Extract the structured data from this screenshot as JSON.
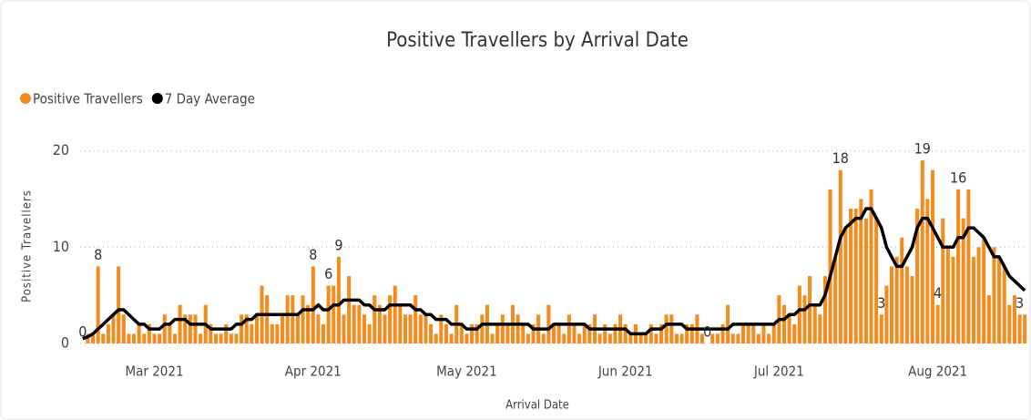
{
  "chart_data": {
    "type": "bar_line",
    "title": "Positive Travellers by Arrival Date",
    "x_label": "Arrival Date",
    "y_label": "Positive Travellers",
    "ylim": [
      0,
      21
    ],
    "yticks": [
      0,
      10,
      20
    ],
    "grid": true,
    "legend": "top-left",
    "categories": [
      null,
      null,
      null,
      null,
      null,
      null,
      null,
      null,
      null,
      null,
      null,
      null,
      null,
      null,
      "Mar 2021",
      null,
      null,
      null,
      null,
      null,
      null,
      null,
      null,
      null,
      null,
      null,
      null,
      null,
      null,
      null,
      null,
      null,
      null,
      null,
      null,
      null,
      null,
      null,
      null,
      null,
      null,
      null,
      null,
      null,
      null,
      "Apr 2021",
      null,
      null,
      null,
      null,
      null,
      null,
      null,
      null,
      null,
      null,
      null,
      null,
      null,
      null,
      null,
      null,
      null,
      null,
      null,
      null,
      null,
      null,
      null,
      null,
      null,
      null,
      null,
      null,
      null,
      "May 2021",
      null,
      null,
      null,
      null,
      null,
      null,
      null,
      null,
      null,
      null,
      null,
      null,
      null,
      null,
      null,
      null,
      null,
      null,
      null,
      null,
      null,
      null,
      null,
      null,
      null,
      null,
      null,
      null,
      null,
      null,
      "Jun 2021",
      null,
      null,
      null,
      null,
      null,
      null,
      null,
      null,
      null,
      null,
      null,
      null,
      null,
      null,
      null,
      null,
      null,
      null,
      null,
      null,
      null,
      null,
      null,
      null,
      null,
      null,
      null,
      null,
      null,
      "Jul 2021",
      null,
      null,
      null,
      null,
      null,
      null,
      null,
      null,
      null,
      null,
      null,
      null,
      null,
      null,
      null,
      null,
      null,
      null,
      null,
      null,
      null,
      null,
      null,
      null,
      null,
      null,
      null,
      null,
      null,
      null,
      "Aug 2021",
      null,
      null,
      null,
      null,
      null,
      null,
      null,
      null,
      null,
      null,
      null,
      null,
      null,
      null,
      null,
      null,
      null
    ],
    "series": [
      {
        "name": "Positive Travellers",
        "color": "#f28c1e",
        "values": [
          0,
          1,
          1,
          8,
          1,
          2,
          3,
          8,
          3,
          1,
          1,
          2,
          1,
          2,
          1,
          1,
          3,
          2,
          1,
          4,
          3,
          3,
          3,
          1,
          4,
          2,
          1,
          1,
          2,
          1,
          1,
          3,
          3,
          2,
          3,
          6,
          5,
          2,
          2,
          3,
          5,
          5,
          3,
          5,
          4,
          8,
          3,
          2,
          6,
          6,
          9,
          3,
          7,
          4,
          4,
          3,
          2,
          5,
          4,
          3,
          5,
          6,
          4,
          3,
          3,
          5,
          3,
          3,
          2,
          1,
          3,
          2,
          1,
          4,
          2,
          1,
          2,
          2,
          3,
          4,
          1,
          2,
          3,
          2,
          4,
          3,
          2,
          1,
          2,
          3,
          1,
          4,
          2,
          2,
          1,
          3,
          2,
          1,
          2,
          2,
          3,
          1,
          2,
          1,
          2,
          3,
          2,
          1,
          2,
          1,
          1,
          2,
          1,
          2,
          3,
          3,
          1,
          1,
          2,
          2,
          3,
          1,
          0,
          1,
          1,
          2,
          4,
          1,
          1,
          2,
          2,
          2,
          1,
          2,
          1,
          2,
          5,
          4,
          3,
          2,
          6,
          5,
          7,
          4,
          3,
          7,
          16,
          9,
          18,
          12,
          14,
          14,
          15,
          13,
          16,
          13,
          3,
          6,
          8,
          9,
          11,
          8,
          7,
          14,
          19,
          15,
          18,
          4,
          13,
          10,
          9,
          16,
          13,
          16,
          9,
          10,
          11,
          5,
          10,
          9,
          8,
          4,
          5,
          3,
          3
        ],
        "value_labels": [
          "0",
          null,
          null,
          "8",
          null,
          null,
          null,
          null,
          null,
          null,
          null,
          null,
          null,
          null,
          null,
          null,
          null,
          null,
          null,
          null,
          null,
          null,
          null,
          null,
          null,
          null,
          null,
          null,
          null,
          null,
          null,
          null,
          null,
          null,
          null,
          null,
          null,
          null,
          null,
          null,
          null,
          null,
          null,
          null,
          null,
          "8",
          null,
          null,
          "6",
          null,
          "9",
          null,
          null,
          null,
          null,
          null,
          null,
          null,
          null,
          null,
          null,
          null,
          null,
          null,
          null,
          null,
          null,
          null,
          null,
          null,
          null,
          null,
          null,
          null,
          null,
          null,
          null,
          null,
          null,
          null,
          null,
          null,
          null,
          null,
          null,
          null,
          null,
          null,
          null,
          null,
          null,
          null,
          null,
          null,
          null,
          null,
          null,
          null,
          null,
          null,
          null,
          null,
          null,
          null,
          null,
          null,
          null,
          null,
          null,
          null,
          null,
          null,
          null,
          null,
          null,
          null,
          null,
          null,
          null,
          null,
          null,
          null,
          "0",
          null,
          null,
          null,
          null,
          null,
          null,
          null,
          null,
          null,
          null,
          null,
          null,
          null,
          null,
          null,
          null,
          null,
          null,
          null,
          null,
          null,
          null,
          null,
          null,
          null,
          "18",
          null,
          null,
          null,
          null,
          null,
          null,
          null,
          "3",
          null,
          null,
          null,
          null,
          null,
          null,
          null,
          "19",
          null,
          null,
          "4",
          null,
          null,
          null,
          "16",
          null,
          null,
          null,
          null,
          null,
          null,
          null,
          null,
          null,
          null,
          null,
          "3",
          null
        ]
      },
      {
        "name": "7 Day Average",
        "color": "#000000",
        "values": [
          0.5,
          0.7,
          1,
          1.5,
          2,
          2.5,
          3,
          3.5,
          3.5,
          3,
          2.5,
          2,
          2,
          1.5,
          1.5,
          1.5,
          2,
          2,
          2.5,
          2.5,
          2.5,
          2,
          2,
          2,
          2,
          1.5,
          1.5,
          1.5,
          1.5,
          1.5,
          2,
          2,
          2.5,
          2.5,
          3,
          3,
          3,
          3,
          3,
          3,
          3,
          3,
          3,
          3.5,
          3.5,
          3.5,
          4,
          3.5,
          3.5,
          4,
          4,
          4.5,
          4.5,
          4.5,
          4.5,
          4,
          4,
          3.5,
          3.5,
          3.5,
          4,
          4,
          4,
          4,
          4,
          3.5,
          3.5,
          3,
          3,
          2.5,
          2.5,
          2.5,
          2,
          2,
          2,
          1.5,
          1.5,
          1.5,
          2,
          2,
          2,
          2,
          2,
          2,
          2,
          2,
          2,
          2,
          1.5,
          1.5,
          1.5,
          1.5,
          2,
          2,
          2,
          2,
          2,
          2,
          2,
          1.5,
          1.5,
          1.5,
          1.5,
          1.5,
          1.5,
          1.5,
          1.5,
          1,
          1,
          1,
          1,
          1.5,
          1.5,
          1.5,
          2,
          2,
          2,
          2,
          1.5,
          1.5,
          1.5,
          1.5,
          1.5,
          1.5,
          1.5,
          1.5,
          1.5,
          2,
          2,
          2,
          2,
          2,
          2,
          2,
          2,
          2,
          2.5,
          2.5,
          3,
          3,
          3.5,
          3.5,
          4,
          4,
          4,
          5,
          7,
          9,
          11,
          12,
          12.5,
          13,
          13,
          14,
          14,
          13,
          12,
          10,
          9,
          8,
          8,
          9,
          10,
          12,
          13,
          13,
          12,
          11,
          10,
          10,
          10,
          11,
          11,
          12,
          12,
          11.5,
          11,
          10,
          9,
          9,
          8,
          7,
          6.5,
          6,
          5.5
        ]
      }
    ]
  }
}
